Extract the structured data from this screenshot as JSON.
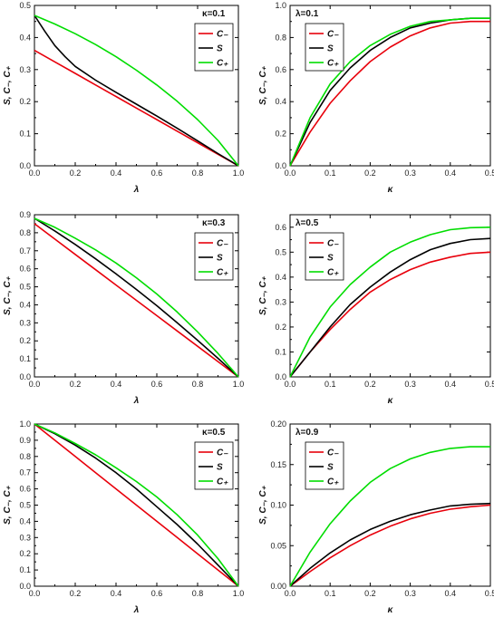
{
  "chart_data": [
    {
      "type": "line",
      "param_label": "κ=0.1",
      "xlabel": "λ",
      "ylabel": "S, C₋, C₊",
      "xlim": [
        0,
        1
      ],
      "ylim": [
        0,
        0.5
      ],
      "xticks": [
        "0.0",
        "0.2",
        "0.4",
        "0.6",
        "0.8",
        "1.0"
      ],
      "yticks": [
        "0.0",
        "0.1",
        "0.2",
        "0.3",
        "0.4",
        "0.5"
      ],
      "legend_position": "top-right",
      "series": [
        {
          "name": "C₋",
          "color": "#e8000b",
          "x": [
            0,
            0.1,
            0.2,
            0.3,
            0.4,
            0.5,
            0.6,
            0.7,
            0.8,
            0.9,
            1.0
          ],
          "y": [
            0.36,
            0.324,
            0.288,
            0.252,
            0.216,
            0.18,
            0.144,
            0.108,
            0.072,
            0.036,
            0.0
          ]
        },
        {
          "name": "S",
          "color": "#000000",
          "x": [
            0,
            0.05,
            0.1,
            0.15,
            0.2,
            0.3,
            0.4,
            0.5,
            0.6,
            0.7,
            0.8,
            0.9,
            1.0
          ],
          "y": [
            0.469,
            0.42,
            0.375,
            0.34,
            0.31,
            0.267,
            0.229,
            0.192,
            0.155,
            0.117,
            0.078,
            0.038,
            0.0
          ]
        },
        {
          "name": "C₊",
          "color": "#00dd00",
          "x": [
            0,
            0.1,
            0.2,
            0.3,
            0.4,
            0.5,
            0.6,
            0.7,
            0.8,
            0.9,
            1.0
          ],
          "y": [
            0.469,
            0.442,
            0.412,
            0.378,
            0.34,
            0.298,
            0.252,
            0.201,
            0.144,
            0.079,
            0.0
          ]
        }
      ]
    },
    {
      "type": "line",
      "param_label": "λ=0.1",
      "xlabel": "κ",
      "ylabel": "S, C₋, C₊",
      "xlim": [
        0,
        0.5
      ],
      "ylim": [
        0,
        1.0
      ],
      "xticks": [
        "0.0",
        "0.1",
        "0.2",
        "0.3",
        "0.4",
        "0.5"
      ],
      "yticks": [
        "0.0",
        "0.2",
        "0.4",
        "0.6",
        "0.8",
        "1.0"
      ],
      "legend_position": "top-right",
      "series": [
        {
          "name": "C₋",
          "color": "#e8000b",
          "x": [
            0,
            0.05,
            0.1,
            0.15,
            0.2,
            0.25,
            0.3,
            0.35,
            0.4,
            0.45,
            0.5
          ],
          "y": [
            0,
            0.21,
            0.39,
            0.53,
            0.65,
            0.74,
            0.81,
            0.86,
            0.89,
            0.9,
            0.9
          ]
        },
        {
          "name": "S",
          "color": "#000000",
          "x": [
            0,
            0.05,
            0.1,
            0.15,
            0.2,
            0.25,
            0.3,
            0.35,
            0.4,
            0.45,
            0.5
          ],
          "y": [
            0,
            0.27,
            0.47,
            0.61,
            0.72,
            0.8,
            0.86,
            0.89,
            0.91,
            0.92,
            0.92
          ]
        },
        {
          "name": "C₊",
          "color": "#00dd00",
          "x": [
            0,
            0.05,
            0.1,
            0.15,
            0.2,
            0.25,
            0.3,
            0.35,
            0.4,
            0.45,
            0.5
          ],
          "y": [
            0,
            0.3,
            0.51,
            0.65,
            0.75,
            0.82,
            0.87,
            0.9,
            0.91,
            0.92,
            0.92
          ]
        }
      ]
    },
    {
      "type": "line",
      "param_label": "κ=0.3",
      "xlabel": "λ",
      "ylabel": "S, C₋, C₊",
      "xlim": [
        0,
        1
      ],
      "ylim": [
        0,
        0.9
      ],
      "xticks": [
        "0.0",
        "0.2",
        "0.4",
        "0.6",
        "0.8",
        "1.0"
      ],
      "yticks": [
        "0.0",
        "0.1",
        "0.2",
        "0.3",
        "0.4",
        "0.5",
        "0.6",
        "0.7",
        "0.8",
        "0.9"
      ],
      "legend_position": "top-right",
      "series": [
        {
          "name": "C₋",
          "color": "#e8000b",
          "x": [
            0,
            0.1,
            0.2,
            0.3,
            0.4,
            0.5,
            0.6,
            0.7,
            0.8,
            0.9,
            1.0
          ],
          "y": [
            0.85,
            0.765,
            0.68,
            0.595,
            0.51,
            0.425,
            0.34,
            0.255,
            0.17,
            0.085,
            0.0
          ]
        },
        {
          "name": "S",
          "color": "#000000",
          "x": [
            0,
            0.1,
            0.2,
            0.3,
            0.4,
            0.5,
            0.6,
            0.7,
            0.8,
            0.9,
            1.0
          ],
          "y": [
            0.88,
            0.81,
            0.735,
            0.655,
            0.572,
            0.485,
            0.395,
            0.3,
            0.203,
            0.103,
            0.0
          ]
        },
        {
          "name": "C₊",
          "color": "#00dd00",
          "x": [
            0,
            0.1,
            0.2,
            0.3,
            0.4,
            0.5,
            0.6,
            0.7,
            0.8,
            0.9,
            1.0
          ],
          "y": [
            0.88,
            0.83,
            0.77,
            0.705,
            0.632,
            0.55,
            0.46,
            0.36,
            0.25,
            0.13,
            0.0
          ]
        }
      ]
    },
    {
      "type": "line",
      "param_label": "λ=0.5",
      "xlabel": "κ",
      "ylabel": "S, C₋, C₊",
      "xlim": [
        0,
        0.5
      ],
      "ylim": [
        0,
        0.65
      ],
      "xticks": [
        "0.0",
        "0.1",
        "0.2",
        "0.3",
        "0.4",
        "0.5"
      ],
      "yticks": [
        "0.0",
        "0.1",
        "0.2",
        "0.3",
        "0.4",
        "0.5",
        "0.6"
      ],
      "legend_position": "top-right",
      "series": [
        {
          "name": "C₋",
          "color": "#e8000b",
          "x": [
            0,
            0.05,
            0.1,
            0.15,
            0.2,
            0.25,
            0.3,
            0.35,
            0.4,
            0.45,
            0.5
          ],
          "y": [
            0,
            0.1,
            0.19,
            0.27,
            0.34,
            0.39,
            0.43,
            0.46,
            0.48,
            0.495,
            0.5
          ]
        },
        {
          "name": "S",
          "color": "#000000",
          "x": [
            0,
            0.05,
            0.1,
            0.15,
            0.2,
            0.25,
            0.3,
            0.35,
            0.4,
            0.45,
            0.5
          ],
          "y": [
            0,
            0.1,
            0.2,
            0.29,
            0.36,
            0.42,
            0.47,
            0.51,
            0.535,
            0.55,
            0.555
          ]
        },
        {
          "name": "C₊",
          "color": "#00dd00",
          "x": [
            0,
            0.05,
            0.1,
            0.15,
            0.2,
            0.25,
            0.3,
            0.35,
            0.4,
            0.45,
            0.5
          ],
          "y": [
            0,
            0.16,
            0.28,
            0.37,
            0.44,
            0.5,
            0.54,
            0.57,
            0.59,
            0.598,
            0.6
          ]
        }
      ]
    },
    {
      "type": "line",
      "param_label": "κ=0.5",
      "xlabel": "λ",
      "ylabel": "S, C₋, C₊",
      "xlim": [
        0,
        1
      ],
      "ylim": [
        0,
        1.0
      ],
      "xticks": [
        "0.0",
        "0.2",
        "0.4",
        "0.6",
        "0.8",
        "1.0"
      ],
      "yticks": [
        "0.0",
        "0.1",
        "0.2",
        "0.3",
        "0.4",
        "0.5",
        "0.6",
        "0.7",
        "0.8",
        "0.9",
        "1.0"
      ],
      "legend_position": "top-right",
      "series": [
        {
          "name": "C₋",
          "color": "#e8000b",
          "x": [
            0,
            0.1,
            0.2,
            0.3,
            0.4,
            0.5,
            0.6,
            0.7,
            0.8,
            0.9,
            1.0
          ],
          "y": [
            1.0,
            0.9,
            0.8,
            0.7,
            0.6,
            0.5,
            0.4,
            0.3,
            0.2,
            0.1,
            0.0
          ]
        },
        {
          "name": "S",
          "color": "#000000",
          "x": [
            0,
            0.1,
            0.2,
            0.3,
            0.4,
            0.5,
            0.6,
            0.7,
            0.8,
            0.9,
            1.0
          ],
          "y": [
            1.0,
            0.94,
            0.87,
            0.79,
            0.7,
            0.6,
            0.49,
            0.38,
            0.26,
            0.13,
            0.0
          ]
        },
        {
          "name": "C₊",
          "color": "#00dd00",
          "x": [
            0,
            0.1,
            0.2,
            0.3,
            0.4,
            0.5,
            0.6,
            0.7,
            0.8,
            0.9,
            1.0
          ],
          "y": [
            1.0,
            0.945,
            0.88,
            0.81,
            0.73,
            0.645,
            0.55,
            0.44,
            0.315,
            0.17,
            0.0
          ]
        }
      ]
    },
    {
      "type": "line",
      "param_label": "λ=0.9",
      "xlabel": "κ",
      "ylabel": "S, C₋, C₊",
      "xlim": [
        0,
        0.5
      ],
      "ylim": [
        0,
        0.2
      ],
      "xticks": [
        "0.0",
        "0.1",
        "0.2",
        "0.3",
        "0.4",
        "0.5"
      ],
      "yticks": [
        "0.00",
        "0.05",
        "0.10",
        "0.15",
        "0.20"
      ],
      "legend_position": "top-right",
      "series": [
        {
          "name": "C₋",
          "color": "#e8000b",
          "x": [
            0,
            0.05,
            0.1,
            0.15,
            0.2,
            0.25,
            0.3,
            0.35,
            0.4,
            0.45,
            0.5
          ],
          "y": [
            0,
            0.018,
            0.035,
            0.05,
            0.063,
            0.074,
            0.083,
            0.09,
            0.095,
            0.098,
            0.1
          ]
        },
        {
          "name": "S",
          "color": "#000000",
          "x": [
            0,
            0.05,
            0.1,
            0.15,
            0.2,
            0.25,
            0.3,
            0.35,
            0.4,
            0.45,
            0.5
          ],
          "y": [
            0,
            0.022,
            0.041,
            0.057,
            0.07,
            0.08,
            0.088,
            0.094,
            0.099,
            0.101,
            0.102
          ]
        },
        {
          "name": "C₊",
          "color": "#00dd00",
          "x": [
            0,
            0.05,
            0.1,
            0.15,
            0.2,
            0.25,
            0.3,
            0.35,
            0.4,
            0.45,
            0.5
          ],
          "y": [
            0,
            0.042,
            0.077,
            0.105,
            0.128,
            0.145,
            0.157,
            0.165,
            0.17,
            0.172,
            0.172
          ]
        }
      ]
    }
  ]
}
